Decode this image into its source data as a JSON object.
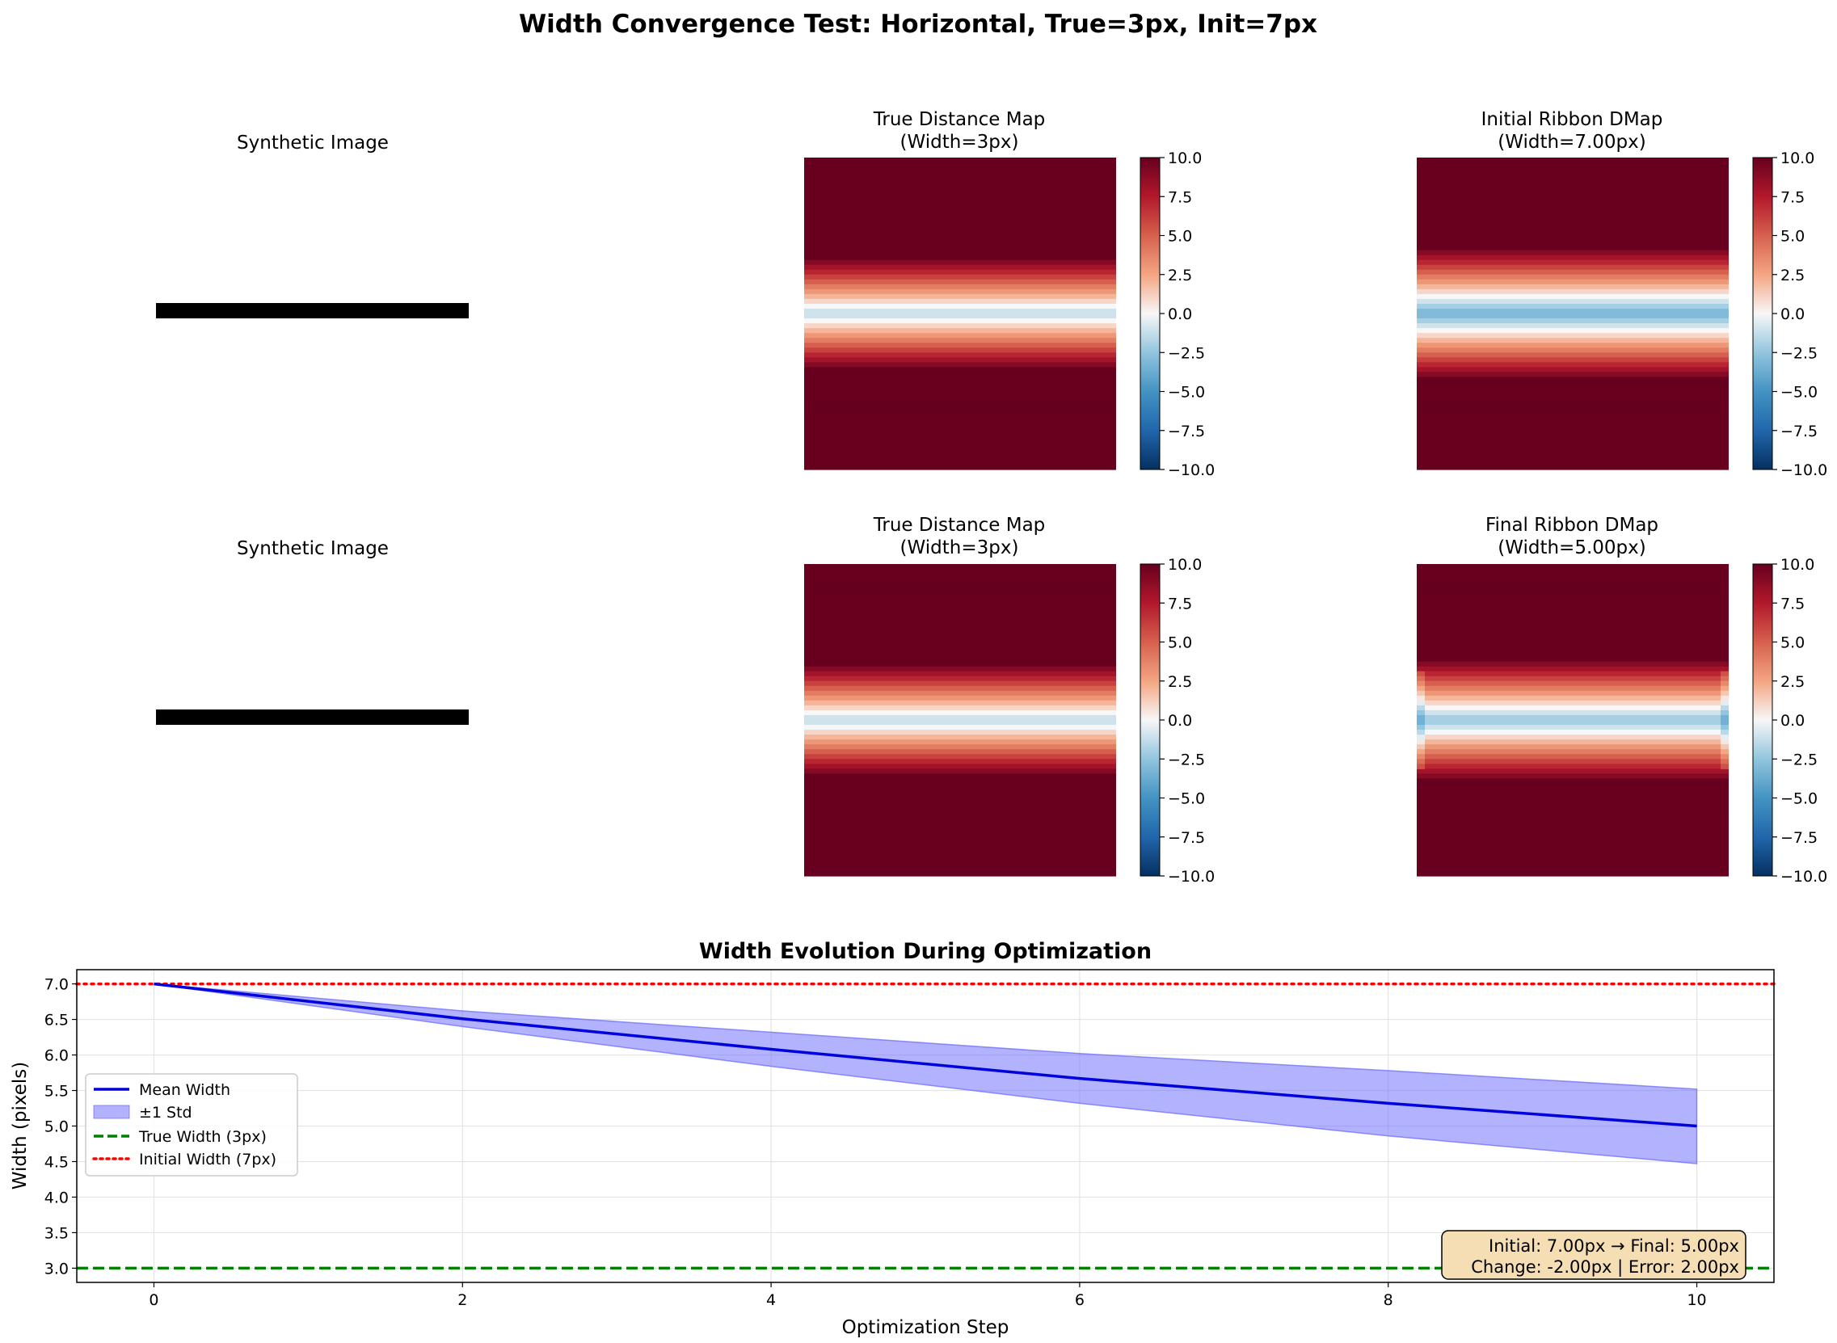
{
  "figure": {
    "suptitle": "Width Convergence Test: Horizontal, True=3px, Init=7px"
  },
  "panels": {
    "synthetic_top": {
      "title": "Synthetic Image"
    },
    "synthetic_bottom": {
      "title": "Synthetic Image"
    },
    "true_top": {
      "title_line1": "True Distance Map",
      "title_line2": "(Width=3px)"
    },
    "true_bottom": {
      "title_line1": "True Distance Map",
      "title_line2": "(Width=3px)"
    },
    "initial": {
      "title_line1": "Initial Ribbon DMap",
      "title_line2": "(Width=7.00px)"
    },
    "final": {
      "title_line1": "Final Ribbon DMap",
      "title_line2": "(Width=5.00px)"
    },
    "colorbar": {
      "ticks": [
        10.0,
        7.5,
        5.0,
        2.5,
        0.0,
        -2.5,
        -5.0,
        -7.5,
        -10.0
      ],
      "tick_labels": [
        "10.0",
        "7.5",
        "5.0",
        "2.5",
        "0.0",
        "−2.5",
        "−5.0",
        "−7.5",
        "−10.0"
      ],
      "vmin": -10.0,
      "vmax": 10.0,
      "colormap": "RdBu"
    }
  },
  "annotation": {
    "line1": "Initial: 7.00px → Final: 5.00px",
    "line2": "Change: -2.00px | Error: 2.00px",
    "facecolor": "#f5deb3"
  },
  "chart_data": {
    "type": "line",
    "title": "Width Evolution During Optimization",
    "xlabel": "Optimization Step",
    "ylabel": "Width (pixels)",
    "xlim": [
      -0.5,
      10.5
    ],
    "ylim": [
      2.8,
      7.2
    ],
    "xticks": [
      0,
      2,
      4,
      6,
      8,
      10
    ],
    "yticks": [
      3.0,
      3.5,
      4.0,
      4.5,
      5.0,
      5.5,
      6.0,
      6.5,
      7.0
    ],
    "grid": true,
    "legend_position": "center-left",
    "x": [
      0,
      2,
      4,
      6,
      8,
      10
    ],
    "series": [
      {
        "name": "Mean Width",
        "kind": "line",
        "color": "#0000dd",
        "values": [
          7.0,
          6.51,
          6.08,
          5.67,
          5.32,
          5.0
        ]
      },
      {
        "name": "±1 Std",
        "kind": "band",
        "color": "#6666ff",
        "upper": [
          7.0,
          6.62,
          6.32,
          6.02,
          5.78,
          5.52
        ],
        "lower": [
          7.0,
          6.4,
          5.84,
          5.32,
          4.86,
          4.47
        ]
      },
      {
        "name": "True Width (3px)",
        "kind": "hline",
        "color": "#008000",
        "style": "dashed",
        "value": 3.0
      },
      {
        "name": "Initial Width (7px)",
        "kind": "hline",
        "color": "#ff0000",
        "style": "dotted",
        "value": 7.0
      }
    ]
  }
}
